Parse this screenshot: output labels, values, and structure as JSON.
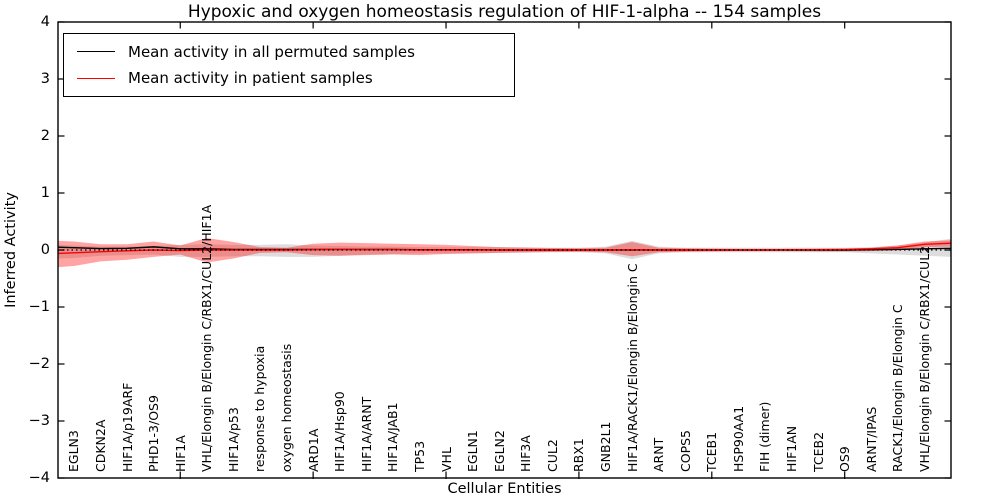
{
  "chart_data": {
    "type": "line",
    "title": "Hypoxic and oxygen homeostasis regulation of HIF-1-alpha -- 154 samples",
    "xlabel": "Cellular Entities",
    "ylabel": "Inferred Activity",
    "ylim": [
      -4,
      4
    ],
    "yticks": [
      4,
      3,
      2,
      1,
      0,
      -1,
      -2,
      -3,
      -4
    ],
    "xlim": [
      0.4,
      34.0
    ],
    "xticks": [
      5,
      10,
      15,
      20,
      25,
      30
    ],
    "grid": false,
    "legend_position": "upper left",
    "zero_line": {
      "y": 0,
      "style": "dotted",
      "color": "#000000"
    },
    "categories": [
      "EGLN3",
      "CDKN2A",
      "HIF1A/p19ARF",
      "PHD1-3/OS9",
      "HIF1A",
      "VHL/Elongin B/Elongin C/RBX1/CUL2/HIF1A",
      "HIF1A/p53",
      "response to hypoxia",
      "oxygen homeostasis",
      "ARD1A",
      "HIF1A/Hsp90",
      "HIF1A/ARNT",
      "HIF1A/JAB1",
      "TP53",
      "VHL",
      "EGLN1",
      "EGLN2",
      "HIF3A",
      "CUL2",
      "RBX1",
      "GNB2L1",
      "HIF1A/RACK1/Elongin B/Elongin C",
      "ARNT",
      "COPS5",
      "TCEB1",
      "HSP90AA1",
      "FIH (dimer)",
      "HIF1AN",
      "TCEB2",
      "OS9",
      "ARNT/IPAS",
      "RACK1/Elongin B/Elongin C",
      "VHL/Elongin B/Elongin C/RBX1/CUL2"
    ],
    "category_positions": [
      1,
      2,
      3,
      4,
      5,
      6,
      7,
      8,
      9,
      10,
      11,
      12,
      13,
      14,
      15,
      16,
      17,
      18,
      19,
      20,
      21,
      22,
      23,
      24,
      25,
      26,
      27,
      28,
      29,
      30,
      31,
      32,
      33
    ],
    "x": [
      0.4,
      1,
      2,
      3,
      4,
      5,
      6,
      7,
      8,
      9,
      10,
      11,
      12,
      13,
      14,
      15,
      16,
      17,
      18,
      19,
      20,
      21,
      22,
      23,
      24,
      25,
      26,
      27,
      28,
      29,
      30,
      31,
      32,
      33,
      34
    ],
    "series": [
      {
        "name": "Mean activity in all permuted samples",
        "color": "#000000",
        "style": "solid",
        "values": [
          0.05,
          0.04,
          0.025,
          0.03,
          0.055,
          0.02,
          0.02,
          0.01,
          0.01,
          0.01,
          0.01,
          0.01,
          0.01,
          0.01,
          0.005,
          0.005,
          0.005,
          0,
          0,
          0,
          0,
          0,
          0,
          0,
          0,
          0,
          0,
          0,
          0,
          0,
          0,
          0.005,
          0.01,
          0.02,
          0.03
        ]
      },
      {
        "name": "Mean activity in patient samples",
        "color": "#ff0000",
        "style": "solid",
        "values": [
          -0.06,
          -0.05,
          -0.03,
          -0.015,
          0,
          -0.01,
          0,
          0,
          0,
          0,
          0.005,
          0.01,
          0.005,
          0.005,
          0,
          0,
          0,
          0,
          0,
          0,
          0,
          0,
          0.005,
          0,
          0,
          0,
          0,
          0,
          0.005,
          0.005,
          0.01,
          0.02,
          0.04,
          0.1,
          0.12
        ]
      }
    ],
    "bands": [
      {
        "name": "permuted samples spread",
        "color": "#999999",
        "opacity": 0.33,
        "upper": [
          0.09,
          0.08,
          0.06,
          0.06,
          0.07,
          0.09,
          0.1,
          0.09,
          0.09,
          0.1,
          0.08,
          0.07,
          0.06,
          0.06,
          0.05,
          0.05,
          0.05,
          0.05,
          0.05,
          0.04,
          0.04,
          0.06,
          0.16,
          0.06,
          0.04,
          0.04,
          0.04,
          0.04,
          0.04,
          0.04,
          0.04,
          0.05,
          0.08,
          0.13,
          0.2
        ],
        "lower": [
          -0.15,
          -0.14,
          -0.1,
          -0.09,
          -0.08,
          -0.12,
          -0.12,
          -0.11,
          -0.11,
          -0.12,
          -0.12,
          -0.1,
          -0.08,
          -0.07,
          -0.06,
          -0.06,
          -0.06,
          -0.05,
          -0.05,
          -0.04,
          -0.04,
          -0.06,
          -0.16,
          -0.06,
          -0.04,
          -0.04,
          -0.04,
          -0.04,
          -0.04,
          -0.04,
          -0.04,
          -0.06,
          -0.08,
          -0.1,
          -0.12
        ]
      },
      {
        "name": "patient samples spread",
        "color": "#ff0000",
        "opacity": 0.36,
        "upper": [
          0.16,
          0.15,
          0.1,
          0.1,
          0.15,
          0.08,
          0.21,
          0.14,
          0.05,
          0.04,
          0.11,
          0.13,
          0.12,
          0.11,
          0.1,
          0.09,
          0.07,
          0.05,
          0.04,
          0.035,
          0.03,
          0.04,
          0.14,
          0.04,
          0.03,
          0.025,
          0.02,
          0.02,
          0.02,
          0.025,
          0.025,
          0.04,
          0.08,
          0.15,
          0.17
        ],
        "lower": [
          -0.3,
          -0.28,
          -0.2,
          -0.17,
          -0.12,
          -0.08,
          -0.22,
          -0.15,
          -0.05,
          -0.04,
          -0.09,
          -0.1,
          -0.09,
          -0.08,
          -0.09,
          -0.07,
          -0.06,
          -0.05,
          -0.04,
          -0.035,
          -0.03,
          -0.04,
          -0.11,
          -0.04,
          -0.03,
          -0.025,
          -0.02,
          -0.02,
          -0.02,
          -0.025,
          -0.025,
          -0.02,
          0,
          0.05,
          0.06
        ]
      }
    ]
  }
}
